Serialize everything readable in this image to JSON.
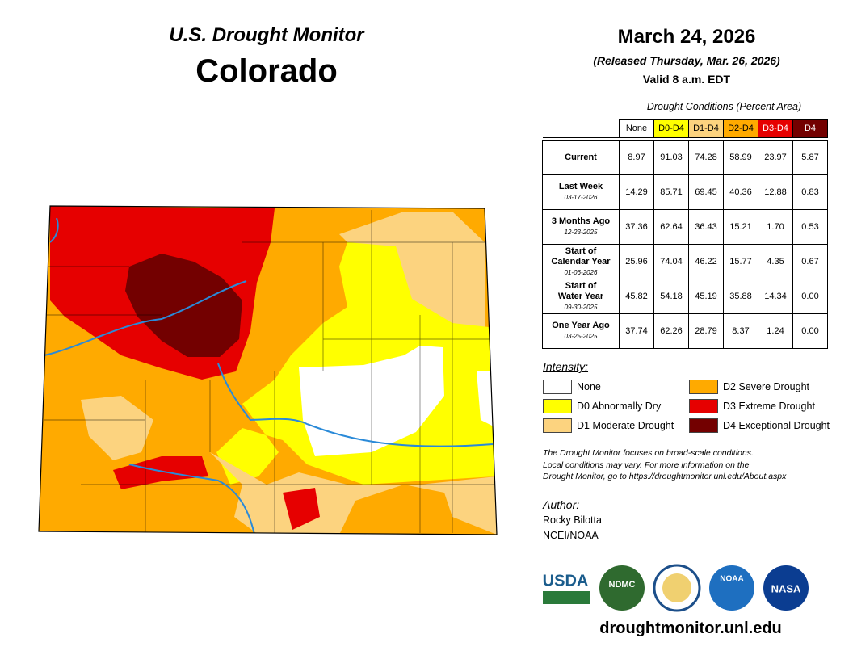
{
  "header": {
    "title": "U.S. Drought Monitor",
    "state": "Colorado",
    "date": "March 24, 2026",
    "released": "(Released Thursday, Mar. 26, 2026)",
    "valid": "Valid 8 a.m. EDT"
  },
  "table": {
    "caption": "Drought Conditions (Percent Area)",
    "columns": [
      "None",
      "D0-D4",
      "D1-D4",
      "D2-D4",
      "D3-D4",
      "D4"
    ],
    "rows": [
      {
        "label": [
          "Current"
        ],
        "values": [
          "8.97",
          "91.03",
          "74.28",
          "58.99",
          "23.97",
          "5.87"
        ]
      },
      {
        "label": [
          "Last Week"
        ],
        "date": "03-17-2026",
        "values": [
          "14.29",
          "85.71",
          "69.45",
          "40.36",
          "12.88",
          "0.83"
        ]
      },
      {
        "label": [
          "3 Months Ago"
        ],
        "date": "12-23-2025",
        "values": [
          "37.36",
          "62.64",
          "36.43",
          "15.21",
          "1.70",
          "0.53"
        ]
      },
      {
        "label": [
          "Start of",
          "Calendar Year"
        ],
        "date": "01-06-2026",
        "values": [
          "25.96",
          "74.04",
          "46.22",
          "15.77",
          "4.35",
          "0.67"
        ]
      },
      {
        "label": [
          "Start of",
          "Water Year"
        ],
        "date": "09-30-2025",
        "values": [
          "45.82",
          "54.18",
          "45.19",
          "35.88",
          "14.34",
          "0.00"
        ]
      },
      {
        "label": [
          "One Year Ago"
        ],
        "date": "03-25-2025",
        "values": [
          "37.74",
          "62.26",
          "28.79",
          "8.37",
          "1.24",
          "0.00"
        ]
      }
    ]
  },
  "legend": {
    "title": "Intensity:",
    "items": [
      {
        "label": "None",
        "color": "#ffffff"
      },
      {
        "label": "D0 Abnormally Dry",
        "color": "#ffff00"
      },
      {
        "label": "D1 Moderate Drought",
        "color": "#fcd37f"
      },
      {
        "label": "D2 Severe Drought",
        "color": "#ffaa00"
      },
      {
        "label": "D3 Extreme Drought",
        "color": "#e60000"
      },
      {
        "label": "D4 Exceptional Drought",
        "color": "#730000"
      }
    ]
  },
  "note": [
    "The Drought Monitor focuses on broad-scale conditions.",
    "Local conditions may vary. For more information on the",
    "Drought Monitor, go to https://droughtmonitor.unl.edu/About.aspx"
  ],
  "author": {
    "title": "Author:",
    "name": "Rocky Bilotta",
    "org": "NCEI/NOAA"
  },
  "logos": [
    "USDA",
    "NDMC",
    "NOAA",
    "NASA"
  ],
  "url": "droughtmonitor.unl.edu"
}
